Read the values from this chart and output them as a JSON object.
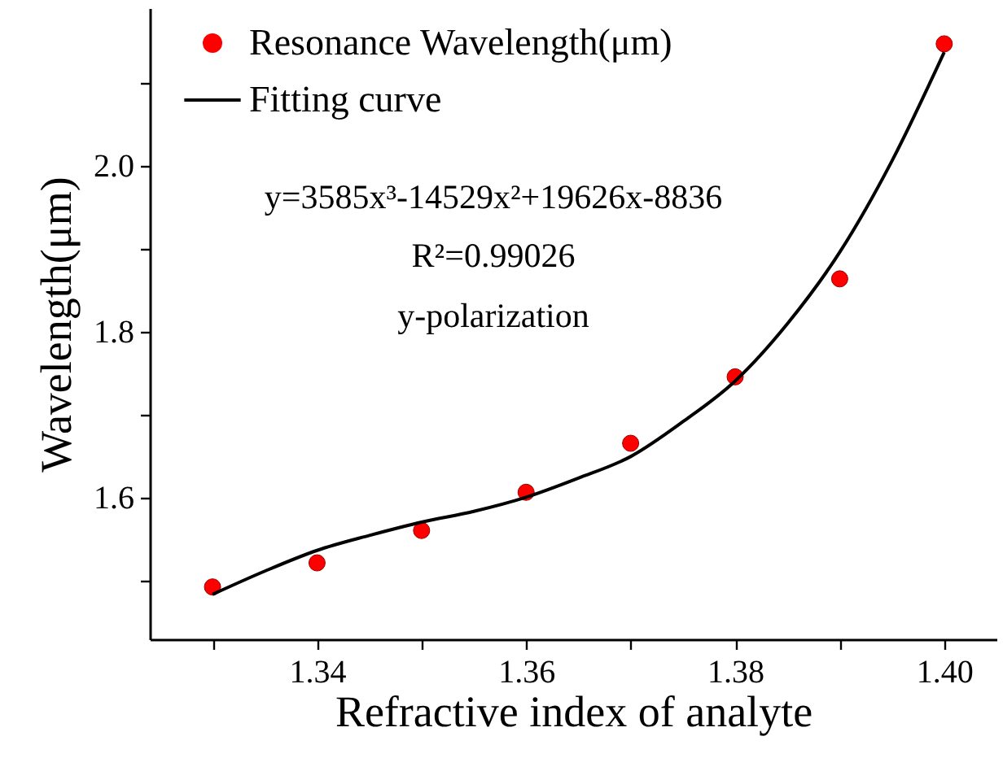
{
  "chart_data": {
    "type": "scatter",
    "xlabel": "Refractive index of analyte",
    "ylabel": "Wavelength(μm)",
    "annotations": [
      "y=3585x³-14529x²+19626x-8836",
      "R²=0.99026",
      "y-polarization"
    ],
    "series": [
      {
        "name": "Resonance Wavelength(μm)",
        "marker": "circle",
        "color": "#ff0000",
        "x": [
          1.33,
          1.34,
          1.35,
          1.36,
          1.37,
          1.38,
          1.39,
          1.4
        ],
        "values": [
          1.493,
          1.522,
          1.561,
          1.607,
          1.666,
          1.746,
          1.864,
          2.147
        ]
      },
      {
        "name": "Fitting curve",
        "type": "line",
        "color": "#000000",
        "x": [
          1.33,
          1.335,
          1.34,
          1.345,
          1.35,
          1.355,
          1.36,
          1.365,
          1.37,
          1.375,
          1.38,
          1.385,
          1.39,
          1.395,
          1.4
        ],
        "values": [
          1.484,
          1.512,
          1.537,
          1.555,
          1.571,
          1.584,
          1.601,
          1.624,
          1.65,
          1.692,
          1.741,
          1.81,
          1.896,
          2.006,
          2.137
        ]
      }
    ],
    "xlim": [
      1.324,
      1.405
    ],
    "ylim": [
      1.43,
      2.19
    ],
    "xticks": [
      {
        "value": 1.33,
        "label": null
      },
      1.34,
      {
        "value": 1.35,
        "label": null
      },
      1.36,
      {
        "value": 1.37,
        "label": null
      },
      1.38,
      {
        "value": 1.39,
        "label": null
      },
      {
        "value": 1.4,
        "label": "1.40"
      }
    ],
    "yticks": [
      {
        "value": 1.5,
        "label": null
      },
      1.6,
      {
        "value": 1.7,
        "label": null
      },
      1.8,
      {
        "value": 1.9,
        "label": null
      },
      {
        "value": 2.0,
        "label": "2.0"
      },
      {
        "value": 2.1,
        "label": null
      }
    ],
    "legend": "top left",
    "grid": false
  }
}
